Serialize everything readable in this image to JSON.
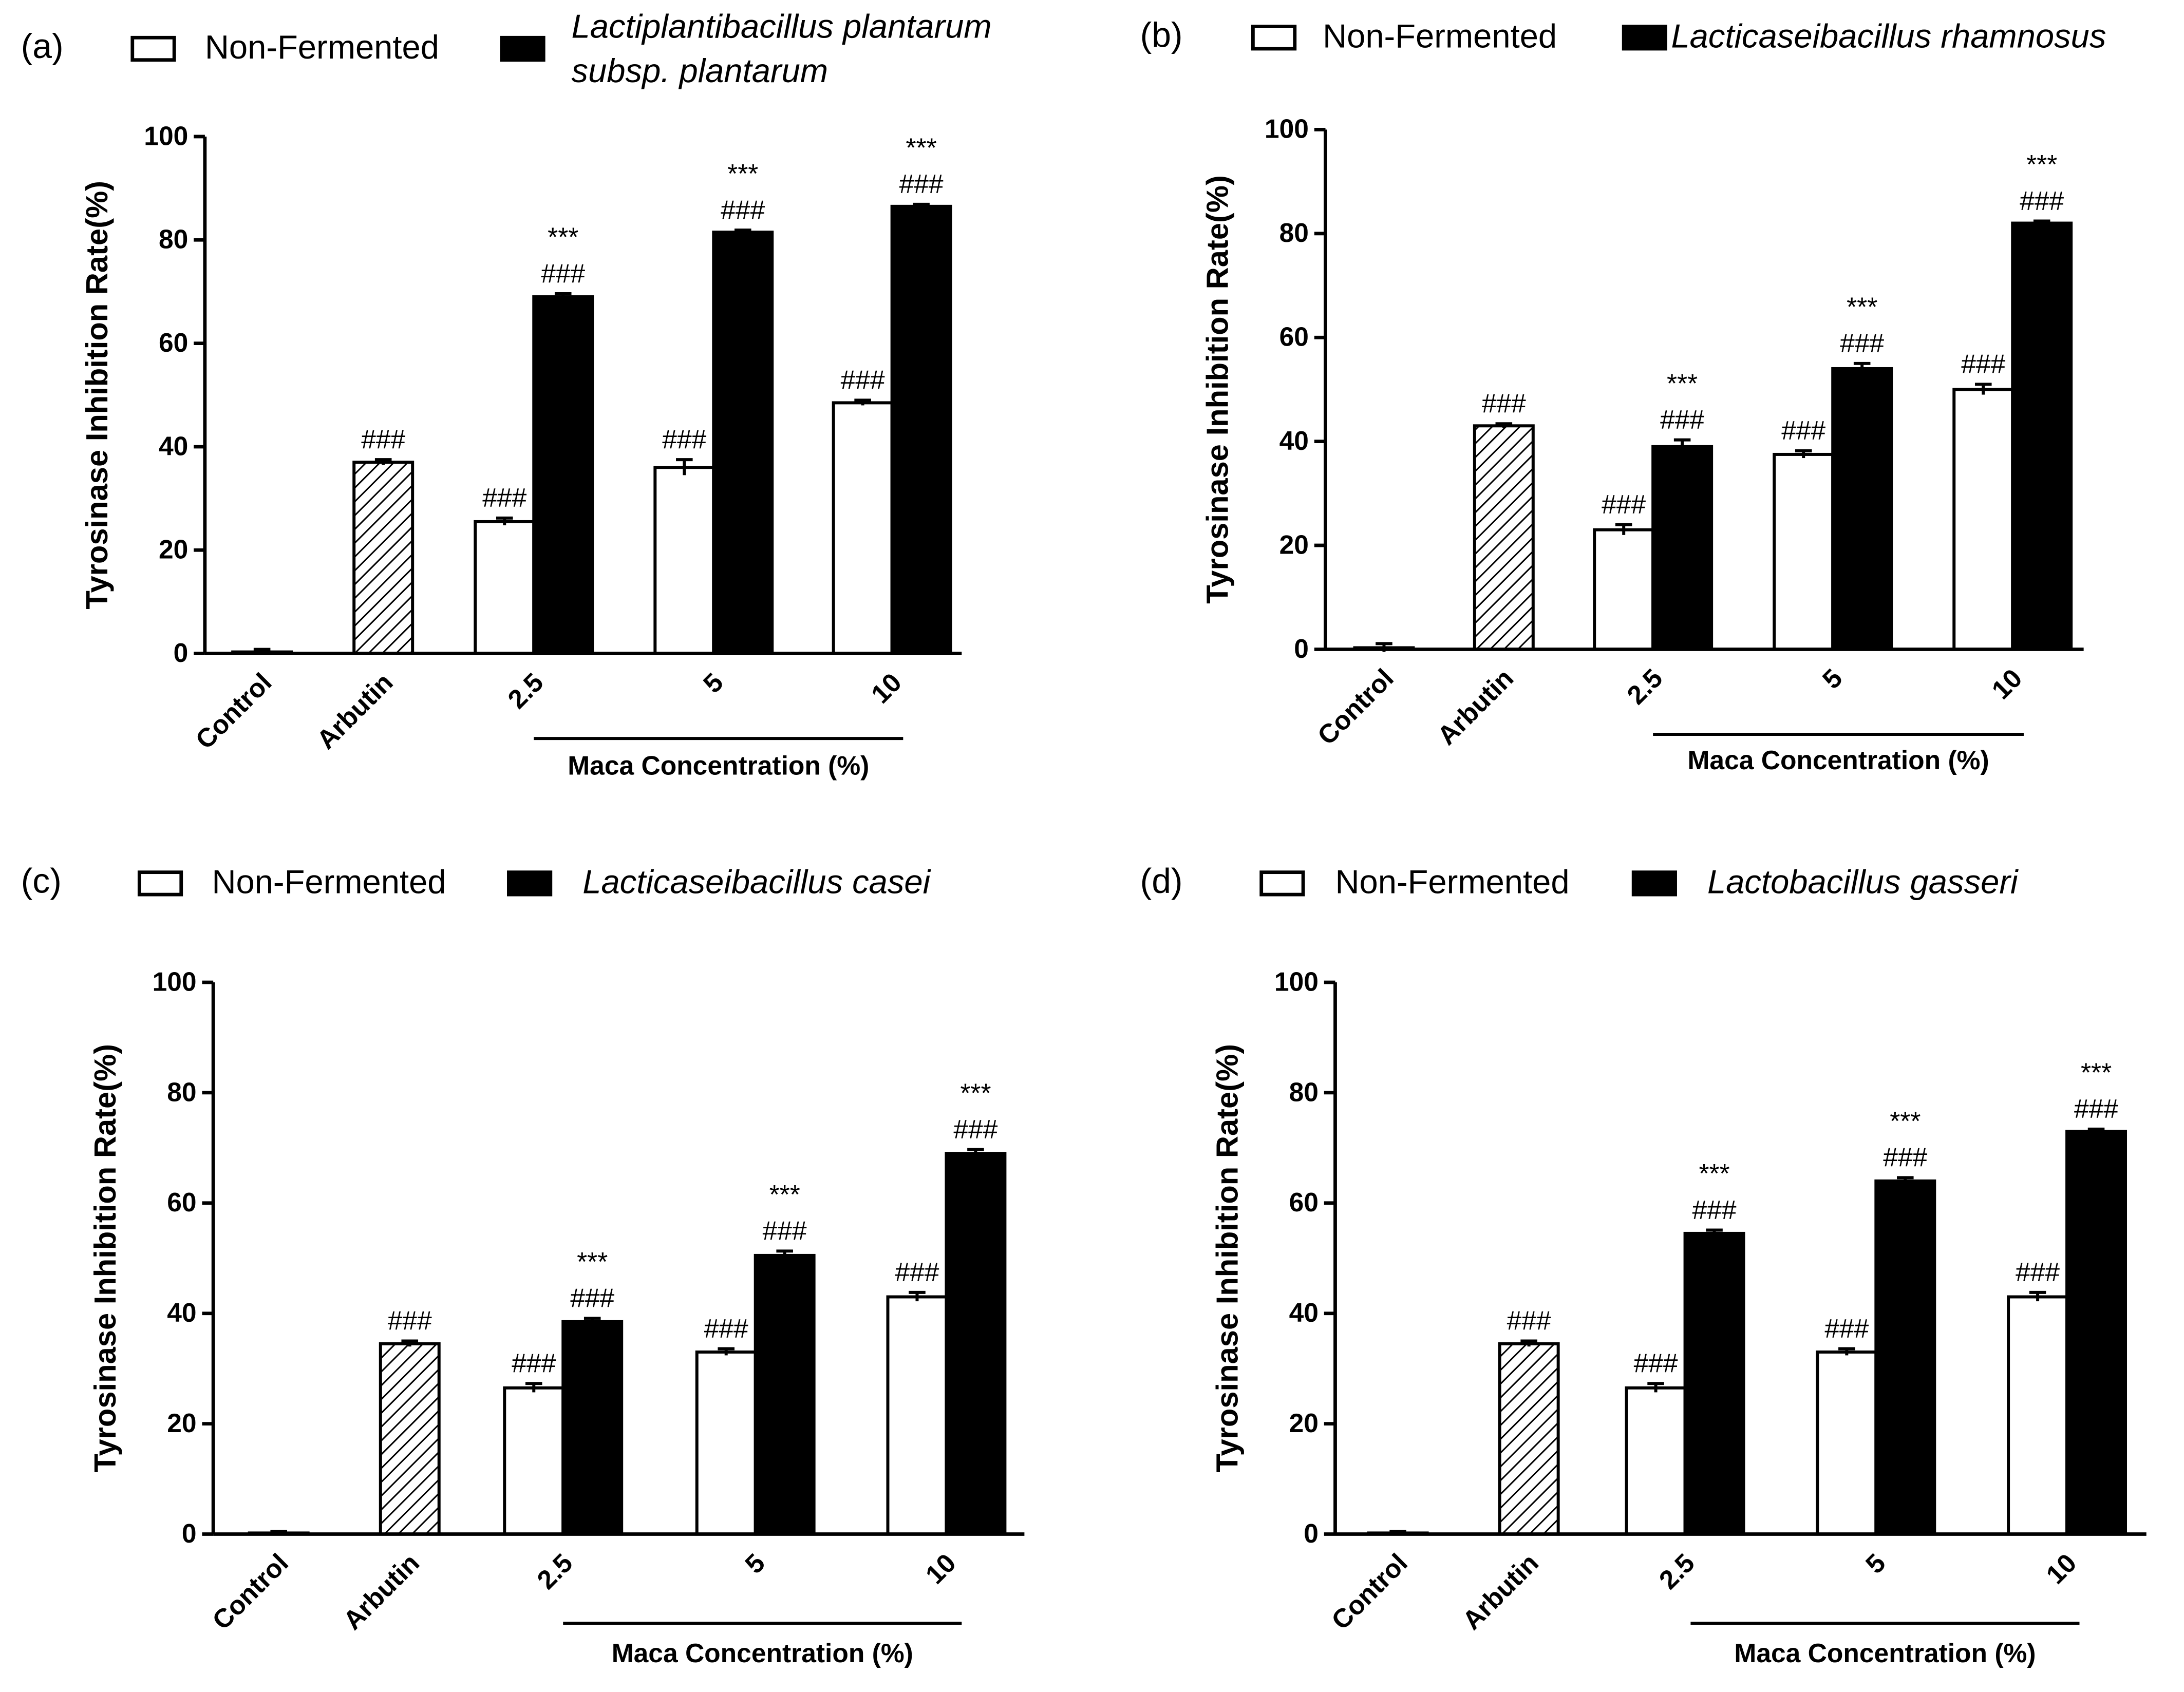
{
  "chart_data": [
    {
      "type": "bar",
      "panel": "(a)",
      "ylabel": "Tyrosinase Inhibition Rate(%)",
      "xlabel": "Maca Concentration (%)",
      "ylim": [
        0,
        100
      ],
      "yticks": [
        0,
        20,
        40,
        60,
        80,
        100
      ],
      "reference": {
        "categories": [
          "Control",
          "Arbutin"
        ],
        "values": [
          0.3,
          37
        ],
        "errors": [
          0.5,
          0.5
        ],
        "annotations": [
          null,
          [
            "###"
          ]
        ]
      },
      "categories": [
        "2.5",
        "5",
        "10"
      ],
      "series": [
        {
          "name": "Non-Fermented",
          "color": "#ffffff",
          "values": [
            25.5,
            36,
            48.5
          ],
          "errors": [
            0.7,
            1.5,
            0.5
          ],
          "annotations": [
            [
              "###"
            ],
            [
              "###"
            ],
            [
              "###"
            ]
          ]
        },
        {
          "name": "Lactiplantibacillus plantarum subsp. plantarum",
          "color": "#000000",
          "values": [
            69,
            81.5,
            86.5
          ],
          "errors": [
            0.6,
            0.4,
            0.4
          ],
          "annotations": [
            [
              "***",
              "###"
            ],
            [
              "***",
              "###"
            ],
            [
              "***",
              "###"
            ]
          ]
        }
      ]
    },
    {
      "type": "bar",
      "panel": "(b)",
      "ylabel": "Tyrosinase Inhibition Rate(%)",
      "xlabel": "Maca Concentration (%)",
      "ylim": [
        0,
        100
      ],
      "yticks": [
        0,
        20,
        40,
        60,
        80,
        100
      ],
      "reference": {
        "categories": [
          "Control",
          "Arbutin"
        ],
        "values": [
          0.3,
          43
        ],
        "errors": [
          0.8,
          0.4
        ],
        "annotations": [
          null,
          [
            "###"
          ]
        ]
      },
      "categories": [
        "2.5",
        "5",
        "10"
      ],
      "series": [
        {
          "name": "Non-Fermented",
          "color": "#ffffff",
          "values": [
            23,
            37.5,
            50
          ],
          "errors": [
            1,
            0.7,
            1
          ],
          "annotations": [
            [
              "###"
            ],
            [
              "###"
            ],
            [
              "###"
            ]
          ]
        },
        {
          "name": "Lacticaseibacillus rhamnosus",
          "color": "#000000",
          "values": [
            39,
            54,
            82
          ],
          "errors": [
            1.3,
            1,
            0.4
          ],
          "annotations": [
            [
              "***",
              "###"
            ],
            [
              "***",
              "###"
            ],
            [
              "***",
              "###"
            ]
          ]
        }
      ]
    },
    {
      "type": "bar",
      "panel": "(c)",
      "ylabel": "Tyrosinase Inhibition Rate(%)",
      "xlabel": "Maca Concentration (%)",
      "ylim": [
        0,
        100
      ],
      "yticks": [
        0,
        20,
        40,
        60,
        80,
        100
      ],
      "reference": {
        "categories": [
          "Control",
          "Arbutin"
        ],
        "values": [
          0.2,
          34.5
        ],
        "errors": [
          0.3,
          0.5
        ],
        "annotations": [
          null,
          [
            "###"
          ]
        ]
      },
      "categories": [
        "2.5",
        "5",
        "10"
      ],
      "series": [
        {
          "name": "Non-Fermented",
          "color": "#ffffff",
          "values": [
            26.5,
            33,
            43
          ],
          "errors": [
            0.8,
            0.6,
            0.8
          ],
          "annotations": [
            [
              "###"
            ],
            [
              "###"
            ],
            [
              "###"
            ]
          ]
        },
        {
          "name": "Lacticaseibacillus casei",
          "color": "#000000",
          "values": [
            38.5,
            50.5,
            69
          ],
          "errors": [
            0.6,
            0.8,
            0.7
          ],
          "annotations": [
            [
              "***",
              "###"
            ],
            [
              "***",
              "###"
            ],
            [
              "***",
              "###"
            ]
          ]
        }
      ]
    },
    {
      "type": "bar",
      "panel": "(d)",
      "ylabel": "Tyrosinase Inhibition Rate(%)",
      "xlabel": "Maca Concentration (%)",
      "ylim": [
        0,
        100
      ],
      "yticks": [
        0,
        20,
        40,
        60,
        80,
        100
      ],
      "reference": {
        "categories": [
          "Control",
          "Arbutin"
        ],
        "values": [
          0.2,
          34.5
        ],
        "errors": [
          0.3,
          0.5
        ],
        "annotations": [
          null,
          [
            "###"
          ]
        ]
      },
      "categories": [
        "2.5",
        "5",
        "10"
      ],
      "series": [
        {
          "name": "Non-Fermented",
          "color": "#ffffff",
          "values": [
            26.5,
            33,
            43
          ],
          "errors": [
            0.8,
            0.6,
            0.8
          ],
          "annotations": [
            [
              "###"
            ],
            [
              "###"
            ],
            [
              "###"
            ]
          ]
        },
        {
          "name": "Lactobacillus gasseri",
          "color": "#000000",
          "values": [
            54.5,
            64,
            73
          ],
          "errors": [
            0.6,
            0.6,
            0.4
          ],
          "annotations": [
            [
              "***",
              "###"
            ],
            [
              "***",
              "###"
            ],
            [
              "***",
              "###"
            ]
          ]
        }
      ]
    }
  ]
}
